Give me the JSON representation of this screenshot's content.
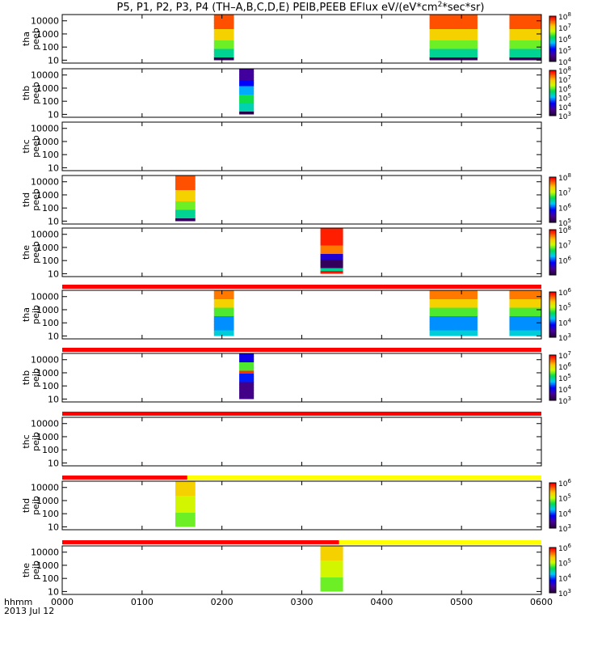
{
  "chart_data": {
    "type": "heatmap",
    "title": "P5, P1, P2, P3, P4 (TH-A,B,C,D,E) PEIB,PEEB EFlux eV/(eV*cm^2*sec*sr)",
    "title_parts": {
      "pre": "P5, P1, P2, P3, P4 (TH–A,B,C,D,E) PEIB,PEEB EFlux eV/(eV*cm",
      "sup": "2",
      "post": "*sec*sr)"
    },
    "x_axis": {
      "label": "hhmm",
      "date": "2013 Jul 12",
      "range": [
        0,
        360
      ],
      "ticks": [
        {
          "value": 0,
          "label": "0000"
        },
        {
          "value": 60,
          "label": "0100"
        },
        {
          "value": 120,
          "label": "0200"
        },
        {
          "value": 180,
          "label": "0300"
        },
        {
          "value": 240,
          "label": "0400"
        },
        {
          "value": 300,
          "label": "0500"
        },
        {
          "value": 360,
          "label": "0600"
        }
      ]
    },
    "y_axis": {
      "scale": "log",
      "unit": "eV",
      "range": [
        6,
        30000
      ],
      "ticks": [
        {
          "value": 10,
          "label": "10"
        },
        {
          "value": 100,
          "label": "100"
        },
        {
          "value": 1000,
          "label": "1000"
        },
        {
          "value": 10000,
          "label": "10000"
        }
      ]
    },
    "panels": [
      {
        "probe": "tha",
        "product": "peeb",
        "colorbar": {
          "min_exp": 4,
          "max_exp": 8,
          "labels": [
            "10^8",
            "10^7",
            "10^6",
            "10^5",
            "10^4"
          ]
        },
        "data_intervals": [
          {
            "start": 114,
            "end": 129,
            "profile": "electron_hot"
          },
          {
            "start": 276,
            "end": 312,
            "profile": "electron_hot"
          },
          {
            "start": 336,
            "end": 360,
            "profile": "electron_hot"
          }
        ]
      },
      {
        "probe": "thb",
        "product": "peeb",
        "colorbar": {
          "min_exp": 3,
          "max_exp": 8,
          "labels": [
            "10^8",
            "10^7",
            "10^6",
            "10^5",
            "10^4",
            "10^3"
          ]
        },
        "data_intervals": [
          {
            "start": 133,
            "end": 144,
            "profile": "electron_inverted"
          }
        ]
      },
      {
        "probe": "thc",
        "product": "peeb",
        "colorbar": null,
        "data_intervals": []
      },
      {
        "probe": "thd",
        "product": "peeb",
        "colorbar": {
          "min_exp": 5,
          "max_exp": 8,
          "labels": [
            "10^8",
            "10^7",
            "10^6",
            "10^5"
          ]
        },
        "data_intervals": [
          {
            "start": 85,
            "end": 100,
            "profile": "electron_hot"
          }
        ]
      },
      {
        "probe": "the",
        "product": "peeb",
        "colorbar": {
          "min_exp": 5,
          "max_exp": 8,
          "labels": [
            "10^8",
            "10^7",
            "10^6"
          ]
        },
        "data_intervals": [
          {
            "start": 194,
            "end": 211,
            "profile": "electron_cold"
          }
        ]
      },
      {
        "probe": "tha",
        "product": "peib",
        "colorbar": {
          "min_exp": 3,
          "max_exp": 6,
          "labels": [
            "10^6",
            "10^5",
            "10^4",
            "10^3"
          ]
        },
        "data_intervals": [
          {
            "start": 114,
            "end": 129,
            "profile": "ion_hot"
          },
          {
            "start": 276,
            "end": 312,
            "profile": "ion_hot"
          },
          {
            "start": 336,
            "end": 360,
            "profile": "ion_hot"
          }
        ],
        "status_bar": [
          {
            "start": 0,
            "end": 360,
            "color": "red"
          }
        ]
      },
      {
        "probe": "thb",
        "product": "peib",
        "colorbar": {
          "min_exp": 3,
          "max_exp": 7,
          "labels": [
            "10^7",
            "10^6",
            "10^5",
            "10^4",
            "10^3"
          ]
        },
        "data_intervals": [
          {
            "start": 133,
            "end": 144,
            "profile": "ion_band"
          }
        ],
        "status_bar": [
          {
            "start": 0,
            "end": 360,
            "color": "red"
          }
        ]
      },
      {
        "probe": "thc",
        "product": "peib",
        "colorbar": null,
        "data_intervals": [],
        "status_bar": [
          {
            "start": 0,
            "end": 360,
            "color": "red"
          }
        ]
      },
      {
        "probe": "thd",
        "product": "peib",
        "colorbar": {
          "min_exp": 3,
          "max_exp": 6,
          "labels": [
            "10^6",
            "10^5",
            "10^4",
            "10^3"
          ]
        },
        "data_intervals": [
          {
            "start": 85,
            "end": 100,
            "profile": "ion_warm"
          }
        ],
        "status_bar": [
          {
            "start": 0,
            "end": 94,
            "color": "red"
          },
          {
            "start": 94,
            "end": 360,
            "color": "yellow"
          }
        ]
      },
      {
        "probe": "the",
        "product": "peib",
        "colorbar": {
          "min_exp": 3,
          "max_exp": 6,
          "labels": [
            "10^6",
            "10^5",
            "10^4",
            "10^3"
          ]
        },
        "data_intervals": [
          {
            "start": 194,
            "end": 211,
            "profile": "ion_warm"
          }
        ],
        "status_bar": [
          {
            "start": 0,
            "end": 208,
            "color": "red"
          },
          {
            "start": 208,
            "end": 360,
            "color": "yellow"
          }
        ]
      }
    ],
    "colors": {
      "red": "#ff0000",
      "yellow": "#ffff00",
      "axis": "#000000"
    }
  }
}
